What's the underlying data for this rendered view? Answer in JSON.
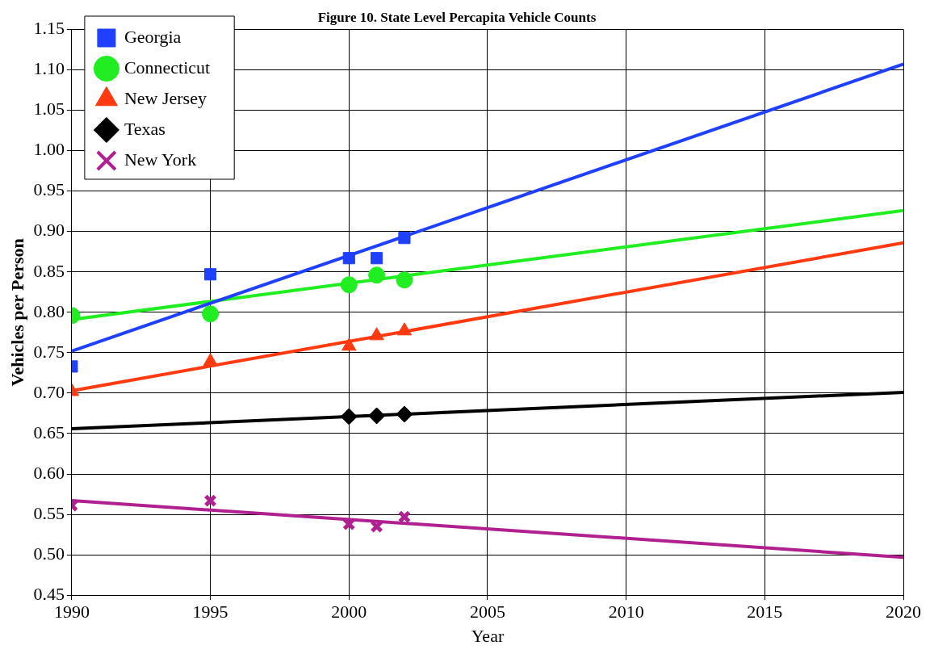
{
  "chart_data": {
    "type": "scatter",
    "title": "Figure 10. State Level Percapita Vehicle Counts",
    "xlabel": "Year",
    "ylabel": "Vehicles per Person",
    "xlim": [
      1990,
      2020
    ],
    "xticks": [
      1990,
      1995,
      2000,
      2005,
      2010,
      2015,
      2020
    ],
    "ylim": [
      0.45,
      1.15
    ],
    "yticks": [
      {
        "value": 0.45,
        "label": "0.45"
      },
      {
        "value": 0.5,
        "label": "0.50"
      },
      {
        "value": 0.55,
        "label": "0.55"
      },
      {
        "value": 0.6,
        "label": "0.60"
      },
      {
        "value": 0.65,
        "label": "0.65"
      },
      {
        "value": 0.7,
        "label": "0.70"
      },
      {
        "value": 0.75,
        "label": "0.75"
      },
      {
        "value": 0.8,
        "label": "0.80"
      },
      {
        "value": 0.85,
        "label": "0.85"
      },
      {
        "value": 0.9,
        "label": "0.90"
      },
      {
        "value": 0.95,
        "label": "0.95"
      },
      {
        "value": 1.0,
        "label": "1.00"
      },
      {
        "value": 1.05,
        "label": "1.05"
      },
      {
        "value": 1.1,
        "label": "1.10"
      },
      {
        "value": 1.15,
        "label": "1.15"
      }
    ],
    "grid": true,
    "legend": "top left",
    "series": [
      {
        "type": "line",
        "color": "#2040ff",
        "marker": "none",
        "x": [
          1990,
          2020
        ],
        "values": [
          0.752,
          1.107
        ]
      },
      {
        "type": "line",
        "color": "#20ee20",
        "marker": "none",
        "x": [
          1990,
          2020
        ],
        "values": [
          0.791,
          0.926
        ]
      },
      {
        "type": "line",
        "color": "#ff3a10",
        "marker": "none",
        "x": [
          1990,
          2020
        ],
        "values": [
          0.703,
          0.886
        ]
      },
      {
        "type": "line",
        "color": "#000000",
        "marker": "none",
        "x": [
          1990,
          2020
        ],
        "values": [
          0.656,
          0.701
        ]
      },
      {
        "type": "line",
        "color": "#b02090",
        "marker": "none",
        "x": [
          1990,
          2020
        ],
        "values": [
          0.567,
          0.497
        ]
      },
      {
        "name": "Georgia",
        "color": "#2040ff",
        "marker": "square",
        "x": [
          1990,
          1995,
          2000,
          2001,
          2002
        ],
        "values": [
          0.733,
          0.847,
          0.867,
          0.867,
          0.892
        ]
      },
      {
        "name": "Connecticut",
        "color": "#20ee20",
        "marker": "circle",
        "x": [
          1990,
          1995,
          2000,
          2001,
          2002
        ],
        "values": [
          0.796,
          0.798,
          0.834,
          0.846,
          0.84
        ]
      },
      {
        "name": "New Jersey",
        "color": "#ff3a10",
        "marker": "triangle",
        "x": [
          1990,
          1995,
          2000,
          2001,
          2002
        ],
        "values": [
          0.702,
          0.739,
          0.758,
          0.771,
          0.777
        ]
      },
      {
        "name": "Texas",
        "color": "#000000",
        "marker": "diamond",
        "x": [
          2000,
          2001,
          2002
        ],
        "values": [
          0.671,
          0.672,
          0.674
        ]
      },
      {
        "name": "New York",
        "color": "#b02090",
        "marker": "cross",
        "x": [
          1990,
          1995,
          2000,
          2001,
          2002
        ],
        "values": [
          0.561,
          0.567,
          0.538,
          0.535,
          0.547
        ]
      }
    ]
  }
}
